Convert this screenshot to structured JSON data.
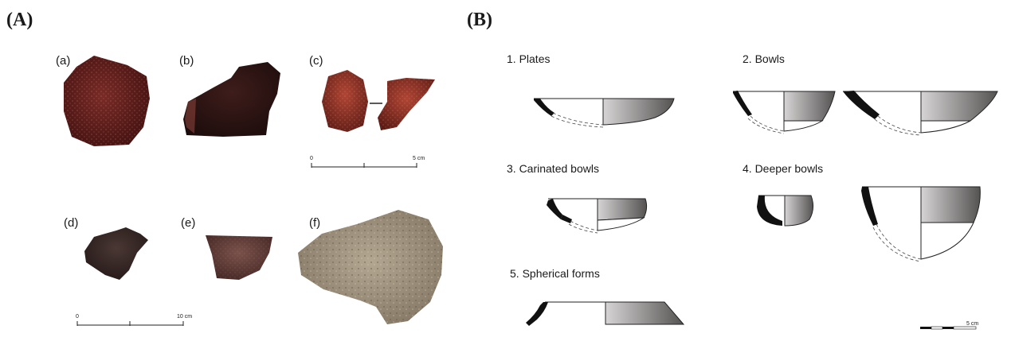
{
  "panels": {
    "a": {
      "letter": "(A)"
    },
    "b": {
      "letter": "(B)"
    }
  },
  "photo_labels": [
    "(a)",
    "(b)",
    "(c)",
    "(d)",
    "(e)",
    "(f)"
  ],
  "scale_top": {
    "start": "0",
    "end": "5 cm"
  },
  "scale_bottom": {
    "start": "0",
    "end": "10 cm"
  },
  "forms": {
    "plates": "1. Plates",
    "bowls": "2. Bowls",
    "carinated": "3. Carinated bowls",
    "deeper": "4. Deeper bowls",
    "spherical": "5. Spherical forms"
  },
  "drawing_scale": {
    "end": "5 cm"
  },
  "colors": {
    "sherd_a": "#5a1a18",
    "sherd_b": "#2f1715",
    "sherd_c": "#8a2d22",
    "sherd_d": "#3a2a28",
    "sherd_e": "#5e3a35",
    "sherd_f": "#9a8c78",
    "gray_fill": "#8f8b8b"
  }
}
